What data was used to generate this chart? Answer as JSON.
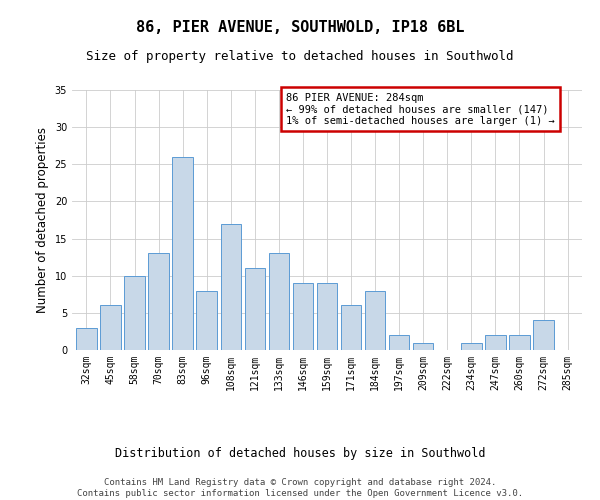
{
  "title": "86, PIER AVENUE, SOUTHWOLD, IP18 6BL",
  "subtitle": "Size of property relative to detached houses in Southwold",
  "xlabel": "Distribution of detached houses by size in Southwold",
  "ylabel": "Number of detached properties",
  "categories": [
    "32sqm",
    "45sqm",
    "58sqm",
    "70sqm",
    "83sqm",
    "96sqm",
    "108sqm",
    "121sqm",
    "133sqm",
    "146sqm",
    "159sqm",
    "171sqm",
    "184sqm",
    "197sqm",
    "209sqm",
    "222sqm",
    "234sqm",
    "247sqm",
    "260sqm",
    "272sqm",
    "285sqm"
  ],
  "values": [
    3,
    6,
    10,
    13,
    26,
    8,
    17,
    11,
    13,
    9,
    9,
    6,
    8,
    2,
    1,
    0,
    1,
    2,
    2,
    4,
    0
  ],
  "bar_color": "#c8d8e8",
  "bar_edge_color": "#5b9bd5",
  "ylim": [
    0,
    35
  ],
  "yticks": [
    0,
    5,
    10,
    15,
    20,
    25,
    30,
    35
  ],
  "legend_text_line1": "86 PIER AVENUE: 284sqm",
  "legend_text_line2": "← 99% of detached houses are smaller (147)",
  "legend_text_line3": "1% of semi-detached houses are larger (1) →",
  "legend_box_color": "#cc0000",
  "footnote_line1": "Contains HM Land Registry data © Crown copyright and database right 2024.",
  "footnote_line2": "Contains public sector information licensed under the Open Government Licence v3.0.",
  "title_fontsize": 11,
  "subtitle_fontsize": 9,
  "axis_label_fontsize": 8.5,
  "tick_fontsize": 7,
  "legend_fontsize": 7.5,
  "footnote_fontsize": 6.5,
  "background_color": "#ffffff",
  "grid_color": "#cccccc"
}
